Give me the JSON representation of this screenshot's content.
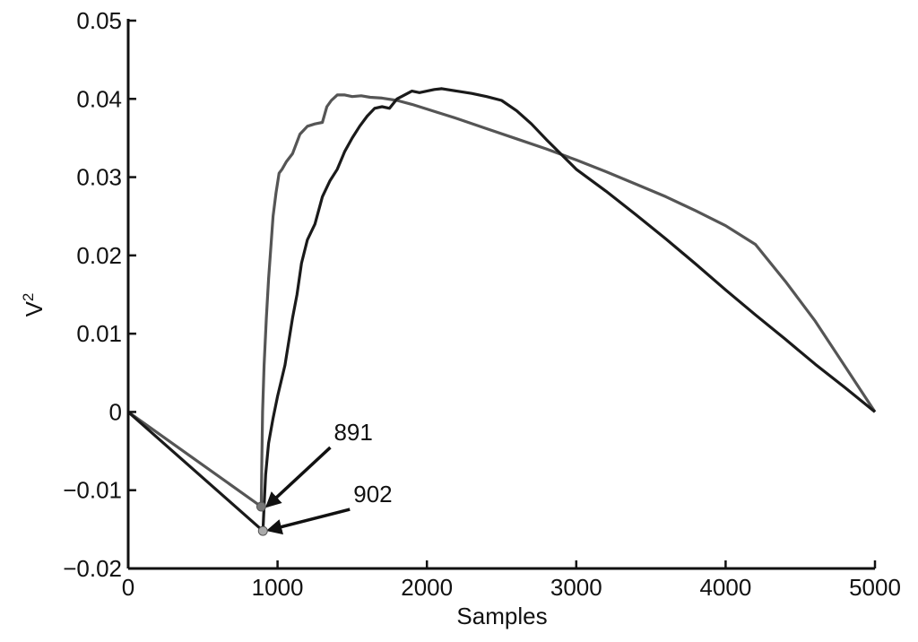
{
  "chart_data": {
    "type": "line",
    "xlabel": "Samples",
    "ylabel": "V",
    "ylabel_superscript": "2",
    "xlim": [
      0,
      5000
    ],
    "ylim": [
      -0.02,
      0.05
    ],
    "x_ticks": [
      0,
      1000,
      2000,
      3000,
      4000,
      5000
    ],
    "x_tick_labels": [
      "0",
      "1000",
      "2000",
      "3000",
      "4000",
      "5000"
    ],
    "y_ticks": [
      -0.02,
      -0.01,
      0,
      0.01,
      0.02,
      0.03,
      0.04,
      0.05
    ],
    "y_tick_labels": [
      "−0.02",
      "−0.01",
      "0",
      "0.01",
      "0.02",
      "0.03",
      "0.04",
      "0.05"
    ],
    "grid": false,
    "colors": {
      "series_a": "#555555",
      "series_b": "#1a1a1a",
      "axis": "#111111"
    },
    "series": [
      {
        "color": "#555555",
        "x": [
          0,
          891,
          895,
          900,
          910,
          925,
          940,
          955,
          970,
          990,
          1010,
          1030,
          1060,
          1100,
          1150,
          1200,
          1250,
          1300,
          1330,
          1360,
          1400,
          1450,
          1500,
          1560,
          1620,
          1700,
          1800,
          1900,
          2000,
          2100,
          2200,
          2400,
          2600,
          2800,
          3000,
          3200,
          3400,
          3600,
          3800,
          4000,
          4200,
          4400,
          4600,
          4800,
          5000
        ],
        "y": [
          0,
          -0.0121,
          -0.006,
          0.0,
          0.006,
          0.012,
          0.017,
          0.021,
          0.025,
          0.028,
          0.0305,
          0.031,
          0.032,
          0.033,
          0.0355,
          0.0365,
          0.0368,
          0.037,
          0.039,
          0.0398,
          0.0405,
          0.0405,
          0.0403,
          0.0404,
          0.0402,
          0.0401,
          0.0398,
          0.0393,
          0.0387,
          0.0381,
          0.0375,
          0.0362,
          0.0349,
          0.0336,
          0.0322,
          0.0307,
          0.0291,
          0.0275,
          0.0257,
          0.0238,
          0.0214,
          0.0167,
          0.0116,
          0.0058,
          0.0
        ]
      },
      {
        "color": "#1a1a1a",
        "x": [
          0,
          902,
          910,
          920,
          940,
          970,
          1000,
          1050,
          1100,
          1130,
          1160,
          1200,
          1250,
          1300,
          1350,
          1400,
          1450,
          1500,
          1550,
          1600,
          1650,
          1700,
          1750,
          1800,
          1850,
          1900,
          1950,
          2000,
          2050,
          2100,
          2200,
          2300,
          2400,
          2500,
          2600,
          2700,
          2800,
          3000,
          3200,
          3400,
          3600,
          3800,
          4000,
          4200,
          4400,
          4600,
          4800,
          5000
        ],
        "y": [
          0,
          -0.0152,
          -0.012,
          -0.008,
          -0.004,
          -0.0008,
          0.002,
          0.006,
          0.012,
          0.015,
          0.019,
          0.022,
          0.024,
          0.0275,
          0.0295,
          0.031,
          0.0333,
          0.035,
          0.0365,
          0.0378,
          0.0388,
          0.039,
          0.0388,
          0.04,
          0.0405,
          0.041,
          0.0408,
          0.041,
          0.0412,
          0.0413,
          0.041,
          0.0407,
          0.0403,
          0.0398,
          0.0385,
          0.0368,
          0.0348,
          0.031,
          0.0282,
          0.0252,
          0.0221,
          0.0189,
          0.0156,
          0.0124,
          0.0093,
          0.0061,
          0.0031,
          0.0
        ]
      }
    ],
    "annotations": [
      {
        "label": "891",
        "x": 891,
        "y": -0.0121
      },
      {
        "label": "902",
        "x": 902,
        "y": -0.0152
      }
    ]
  }
}
